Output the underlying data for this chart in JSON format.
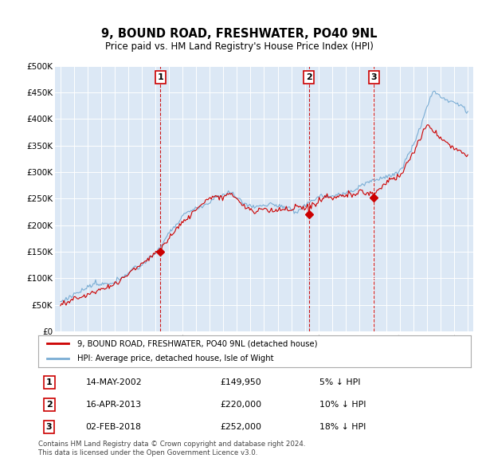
{
  "title": "9, BOUND ROAD, FRESHWATER, PO40 9NL",
  "subtitle": "Price paid vs. HM Land Registry's House Price Index (HPI)",
  "background_color": "#dce8f5",
  "plot_bg_color": "#dce8f5",
  "ylim": [
    0,
    500000
  ],
  "yticks": [
    0,
    50000,
    100000,
    150000,
    200000,
    250000,
    300000,
    350000,
    400000,
    450000,
    500000
  ],
  "ytick_labels": [
    "£0",
    "£50K",
    "£100K",
    "£150K",
    "£200K",
    "£250K",
    "£300K",
    "£350K",
    "£400K",
    "£450K",
    "£500K"
  ],
  "hpi_color": "#7aadd4",
  "sold_color": "#cc0000",
  "annotation_color": "#cc0000",
  "vline_color": "#cc0000",
  "sales": [
    {
      "date_num": 2002.37,
      "price": 149950,
      "label": "1"
    },
    {
      "date_num": 2013.29,
      "price": 220000,
      "label": "2"
    },
    {
      "date_num": 2018.09,
      "price": 252000,
      "label": "3"
    }
  ],
  "legend_entries": [
    "9, BOUND ROAD, FRESHWATER, PO40 9NL (detached house)",
    "HPI: Average price, detached house, Isle of Wight"
  ],
  "table_rows": [
    {
      "num": "1",
      "date": "14-MAY-2002",
      "price": "£149,950",
      "hpi": "5% ↓ HPI"
    },
    {
      "num": "2",
      "date": "16-APR-2013",
      "price": "£220,000",
      "hpi": "10% ↓ HPI"
    },
    {
      "num": "3",
      "date": "02-FEB-2018",
      "price": "£252,000",
      "hpi": "18% ↓ HPI"
    }
  ],
  "footer": "Contains HM Land Registry data © Crown copyright and database right 2024.\nThis data is licensed under the Open Government Licence v3.0."
}
